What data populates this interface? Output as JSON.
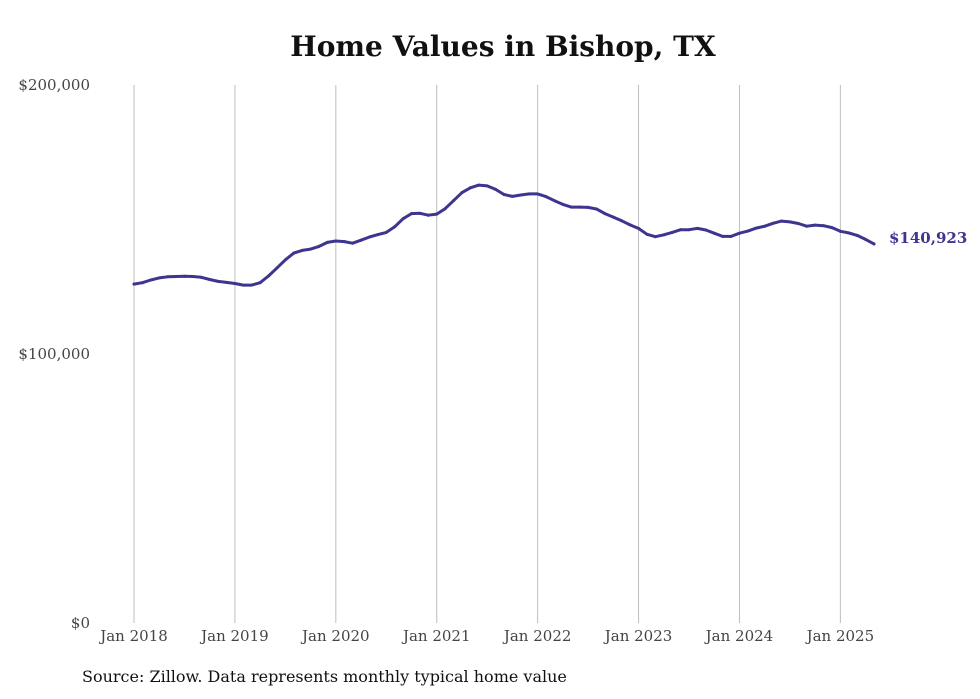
{
  "chart_data": {
    "type": "line",
    "title": "Home Values in Bishop, TX",
    "ylim": [
      0,
      200000
    ],
    "yticks": [
      {
        "value": 0,
        "label": "$0"
      },
      {
        "value": 100000,
        "label": "$100,000"
      },
      {
        "value": 200000,
        "label": "$200,000"
      }
    ],
    "xlim": [
      "2018-01",
      "2025-05"
    ],
    "xticks": [
      {
        "date": "2018-01",
        "label": "Jan 2018"
      },
      {
        "date": "2019-01",
        "label": "Jan 2019"
      },
      {
        "date": "2020-01",
        "label": "Jan 2020"
      },
      {
        "date": "2021-01",
        "label": "Jan 2021"
      },
      {
        "date": "2022-01",
        "label": "Jan 2022"
      },
      {
        "date": "2023-01",
        "label": "Jan 2023"
      },
      {
        "date": "2024-01",
        "label": "Jan 2024"
      },
      {
        "date": "2025-01",
        "label": "Jan 2025"
      }
    ],
    "grid": {
      "vertical": true,
      "horizontal": false
    },
    "series": [
      {
        "color": "#3d3590",
        "end_label": "$140,923",
        "points": [
          [
            "2018-01",
            126000
          ],
          [
            "2018-02",
            126500
          ],
          [
            "2018-03",
            127500
          ],
          [
            "2018-04",
            128300
          ],
          [
            "2018-05",
            128700
          ],
          [
            "2018-06",
            128800
          ],
          [
            "2018-07",
            128900
          ],
          [
            "2018-08",
            128800
          ],
          [
            "2018-09",
            128500
          ],
          [
            "2018-10",
            127700
          ],
          [
            "2018-11",
            127000
          ],
          [
            "2018-12",
            126600
          ],
          [
            "2019-01",
            126200
          ],
          [
            "2019-02",
            125600
          ],
          [
            "2019-03",
            125600
          ],
          [
            "2019-04",
            126500
          ],
          [
            "2019-05",
            129000
          ],
          [
            "2019-06",
            132000
          ],
          [
            "2019-07",
            135000
          ],
          [
            "2019-08",
            137500
          ],
          [
            "2019-09",
            138500
          ],
          [
            "2019-10",
            139000
          ],
          [
            "2019-11",
            140000
          ],
          [
            "2019-12",
            141500
          ],
          [
            "2020-01",
            142000
          ],
          [
            "2020-02",
            141800
          ],
          [
            "2020-03",
            141200
          ],
          [
            "2020-04",
            142300
          ],
          [
            "2020-05",
            143500
          ],
          [
            "2020-06",
            144400
          ],
          [
            "2020-07",
            145200
          ],
          [
            "2020-08",
            147300
          ],
          [
            "2020-09",
            150300
          ],
          [
            "2020-10",
            152200
          ],
          [
            "2020-11",
            152300
          ],
          [
            "2020-12",
            151600
          ],
          [
            "2021-01",
            152000
          ],
          [
            "2021-02",
            154000
          ],
          [
            "2021-03",
            157000
          ],
          [
            "2021-04",
            160000
          ],
          [
            "2021-05",
            161800
          ],
          [
            "2021-06",
            162800
          ],
          [
            "2021-07",
            162500
          ],
          [
            "2021-08",
            161200
          ],
          [
            "2021-09",
            159300
          ],
          [
            "2021-10",
            158600
          ],
          [
            "2021-11",
            159100
          ],
          [
            "2021-12",
            159500
          ],
          [
            "2022-01",
            159500
          ],
          [
            "2022-02",
            158500
          ],
          [
            "2022-03",
            157000
          ],
          [
            "2022-04",
            155600
          ],
          [
            "2022-05",
            154600
          ],
          [
            "2022-06",
            154600
          ],
          [
            "2022-07",
            154500
          ],
          [
            "2022-08",
            153900
          ],
          [
            "2022-09",
            152200
          ],
          [
            "2022-10",
            150900
          ],
          [
            "2022-11",
            149500
          ],
          [
            "2022-12",
            148000
          ],
          [
            "2023-01",
            146700
          ],
          [
            "2023-02",
            144500
          ],
          [
            "2023-03",
            143600
          ],
          [
            "2023-04",
            144300
          ],
          [
            "2023-05",
            145200
          ],
          [
            "2023-06",
            146200
          ],
          [
            "2023-07",
            146200
          ],
          [
            "2023-08",
            146700
          ],
          [
            "2023-09",
            146100
          ],
          [
            "2023-10",
            144900
          ],
          [
            "2023-11",
            143700
          ],
          [
            "2023-12",
            143700
          ],
          [
            "2024-01",
            144900
          ],
          [
            "2024-02",
            145700
          ],
          [
            "2024-03",
            146800
          ],
          [
            "2024-04",
            147500
          ],
          [
            "2024-05",
            148600
          ],
          [
            "2024-06",
            149400
          ],
          [
            "2024-07",
            149100
          ],
          [
            "2024-08",
            148500
          ],
          [
            "2024-09",
            147500
          ],
          [
            "2024-10",
            147900
          ],
          [
            "2024-11",
            147700
          ],
          [
            "2024-12",
            147000
          ],
          [
            "2025-01",
            145600
          ],
          [
            "2025-02",
            145000
          ],
          [
            "2025-03",
            144100
          ],
          [
            "2025-04",
            142600
          ],
          [
            "2025-05",
            140923
          ]
        ]
      }
    ]
  },
  "source": "Source: Zillow. Data represents monthly typical home value"
}
